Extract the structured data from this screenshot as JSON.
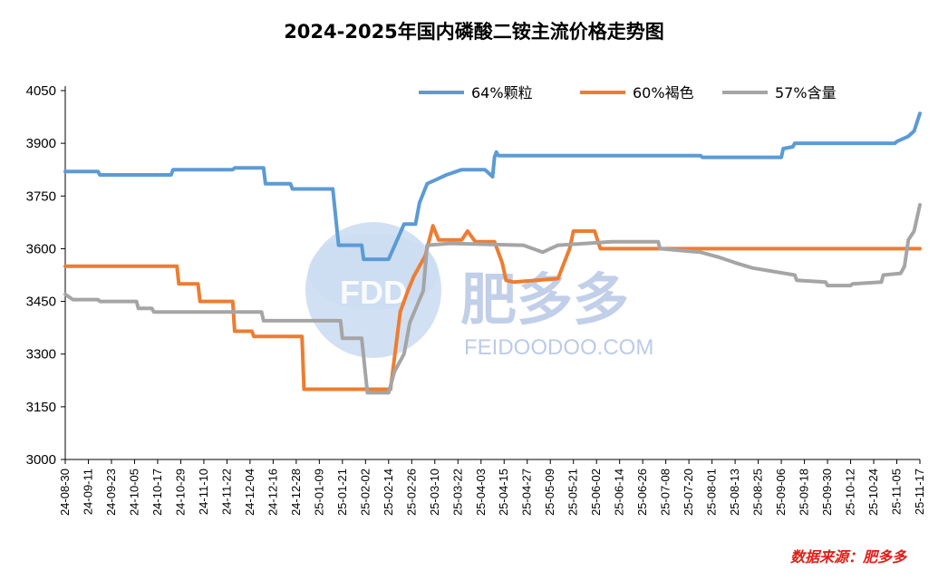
{
  "chart_data": {
    "type": "line",
    "title": "2024-2025年国内磷酸二铵主流价格走势图",
    "xlabel": "",
    "ylabel": "",
    "ylim": [
      3000,
      4050
    ],
    "yticks": [
      3000,
      3150,
      3300,
      3450,
      3600,
      3750,
      3900,
      4050
    ],
    "x_start": "2024-08-30",
    "x_end": "2025-11-17",
    "x_ticks": [
      "24-08-30",
      "24-09-11",
      "24-09-23",
      "24-10-05",
      "24-10-17",
      "24-10-29",
      "24-11-10",
      "24-11-22",
      "24-12-04",
      "24-12-16",
      "24-12-28",
      "25-01-09",
      "25-01-21",
      "25-02-02",
      "25-02-14",
      "25-02-26",
      "25-03-10",
      "25-03-22",
      "25-04-03",
      "25-04-15",
      "25-04-27",
      "25-05-09",
      "25-05-21",
      "25-06-02",
      "25-06-14",
      "25-06-26",
      "25-07-08",
      "25-07-20",
      "25-08-01",
      "25-08-13",
      "25-08-25",
      "25-09-06",
      "25-09-18",
      "25-09-30",
      "25-10-12",
      "25-10-24",
      "25-11-05",
      "25-11-17"
    ],
    "legend_position": "top-right",
    "source": "数据来源：肥多多",
    "series": [
      {
        "name": "64%颗粒",
        "color": "#5b9bd5",
        "x": [
          "2024-08-30",
          "2024-09-16",
          "2024-09-17",
          "2024-10-24",
          "2024-10-25",
          "2024-11-25",
          "2024-11-26",
          "2024-12-11",
          "2024-12-12",
          "2024-12-25",
          "2024-12-26",
          "2025-01-16",
          "2025-01-19",
          "2025-01-31",
          "2025-02-01",
          "2025-02-14",
          "2025-02-20",
          "2025-02-22",
          "2025-02-28",
          "2025-03-02",
          "2025-03-06",
          "2025-03-12",
          "2025-03-16",
          "2025-03-24",
          "2025-04-05",
          "2025-04-09",
          "2025-04-10",
          "2025-04-11",
          "2025-04-12",
          "2025-06-06",
          "2025-07-26",
          "2025-07-27",
          "2025-08-20",
          "2025-09-06",
          "2025-09-07",
          "2025-09-12",
          "2025-09-13",
          "2025-11-04",
          "2025-11-05",
          "2025-11-11",
          "2025-11-14",
          "2025-11-17"
        ],
        "values": [
          3820,
          3820,
          3810,
          3810,
          3825,
          3825,
          3830,
          3830,
          3785,
          3785,
          3770,
          3770,
          3610,
          3610,
          3570,
          3570,
          3645,
          3670,
          3670,
          3730,
          3785,
          3800,
          3810,
          3825,
          3825,
          3805,
          3860,
          3875,
          3865,
          3865,
          3865,
          3860,
          3860,
          3860,
          3885,
          3890,
          3900,
          3900,
          3905,
          3920,
          3935,
          3985
        ]
      },
      {
        "name": "60%褐色",
        "color": "#ed7d31",
        "x": [
          "2024-08-30",
          "2024-10-27",
          "2024-10-28",
          "2024-11-07",
          "2024-11-08",
          "2024-11-25",
          "2024-11-26",
          "2024-12-05",
          "2024-12-06",
          "2024-12-31",
          "2025-01-01",
          "2025-02-15",
          "2025-02-20",
          "2025-02-24",
          "2025-02-27",
          "2025-03-05",
          "2025-03-09",
          "2025-03-12",
          "2025-03-24",
          "2025-03-27",
          "2025-03-31",
          "2025-04-10",
          "2025-04-14",
          "2025-04-16",
          "2025-04-20",
          "2025-05-13",
          "2025-05-19",
          "2025-05-21",
          "2025-06-01",
          "2025-06-04",
          "2025-11-17"
        ],
        "values": [
          3550,
          3550,
          3500,
          3500,
          3450,
          3450,
          3365,
          3365,
          3350,
          3350,
          3200,
          3200,
          3420,
          3480,
          3520,
          3580,
          3665,
          3625,
          3625,
          3650,
          3620,
          3620,
          3560,
          3510,
          3505,
          3515,
          3600,
          3650,
          3650,
          3600,
          3600
        ]
      },
      {
        "name": "57%含量",
        "color": "#a5a5a5",
        "x": [
          "2024-08-30",
          "2024-09-03",
          "2024-09-16",
          "2024-09-17",
          "2024-10-06",
          "2024-10-07",
          "2024-10-14",
          "2024-10-15",
          "2024-12-10",
          "2024-12-11",
          "2025-01-20",
          "2025-01-21",
          "2025-01-31",
          "2025-02-03",
          "2025-02-14",
          "2025-02-17",
          "2025-02-22",
          "2025-02-25",
          "2025-03-04",
          "2025-03-06",
          "2025-03-18",
          "2025-04-25",
          "2025-05-05",
          "2025-05-13",
          "2025-06-10",
          "2025-07-04",
          "2025-07-05",
          "2025-07-26",
          "2025-08-05",
          "2025-08-13",
          "2025-08-22",
          "2025-09-13",
          "2025-09-14",
          "2025-09-29",
          "2025-09-30",
          "2025-10-12",
          "2025-10-13",
          "2025-10-28",
          "2025-10-29",
          "2025-11-07",
          "2025-11-09",
          "2025-11-11",
          "2025-11-14",
          "2025-11-17"
        ],
        "values": [
          3470,
          3455,
          3455,
          3450,
          3450,
          3430,
          3430,
          3420,
          3420,
          3395,
          3395,
          3345,
          3345,
          3190,
          3190,
          3250,
          3300,
          3390,
          3480,
          3610,
          3615,
          3610,
          3590,
          3610,
          3620,
          3620,
          3600,
          3590,
          3575,
          3560,
          3545,
          3525,
          3510,
          3505,
          3495,
          3495,
          3500,
          3505,
          3525,
          3530,
          3550,
          3625,
          3650,
          3725
        ]
      }
    ]
  },
  "watermark": {
    "logo_text": "FDD",
    "brand_text": "肥多多",
    "url_text": "FEIDOODOO.COM"
  }
}
